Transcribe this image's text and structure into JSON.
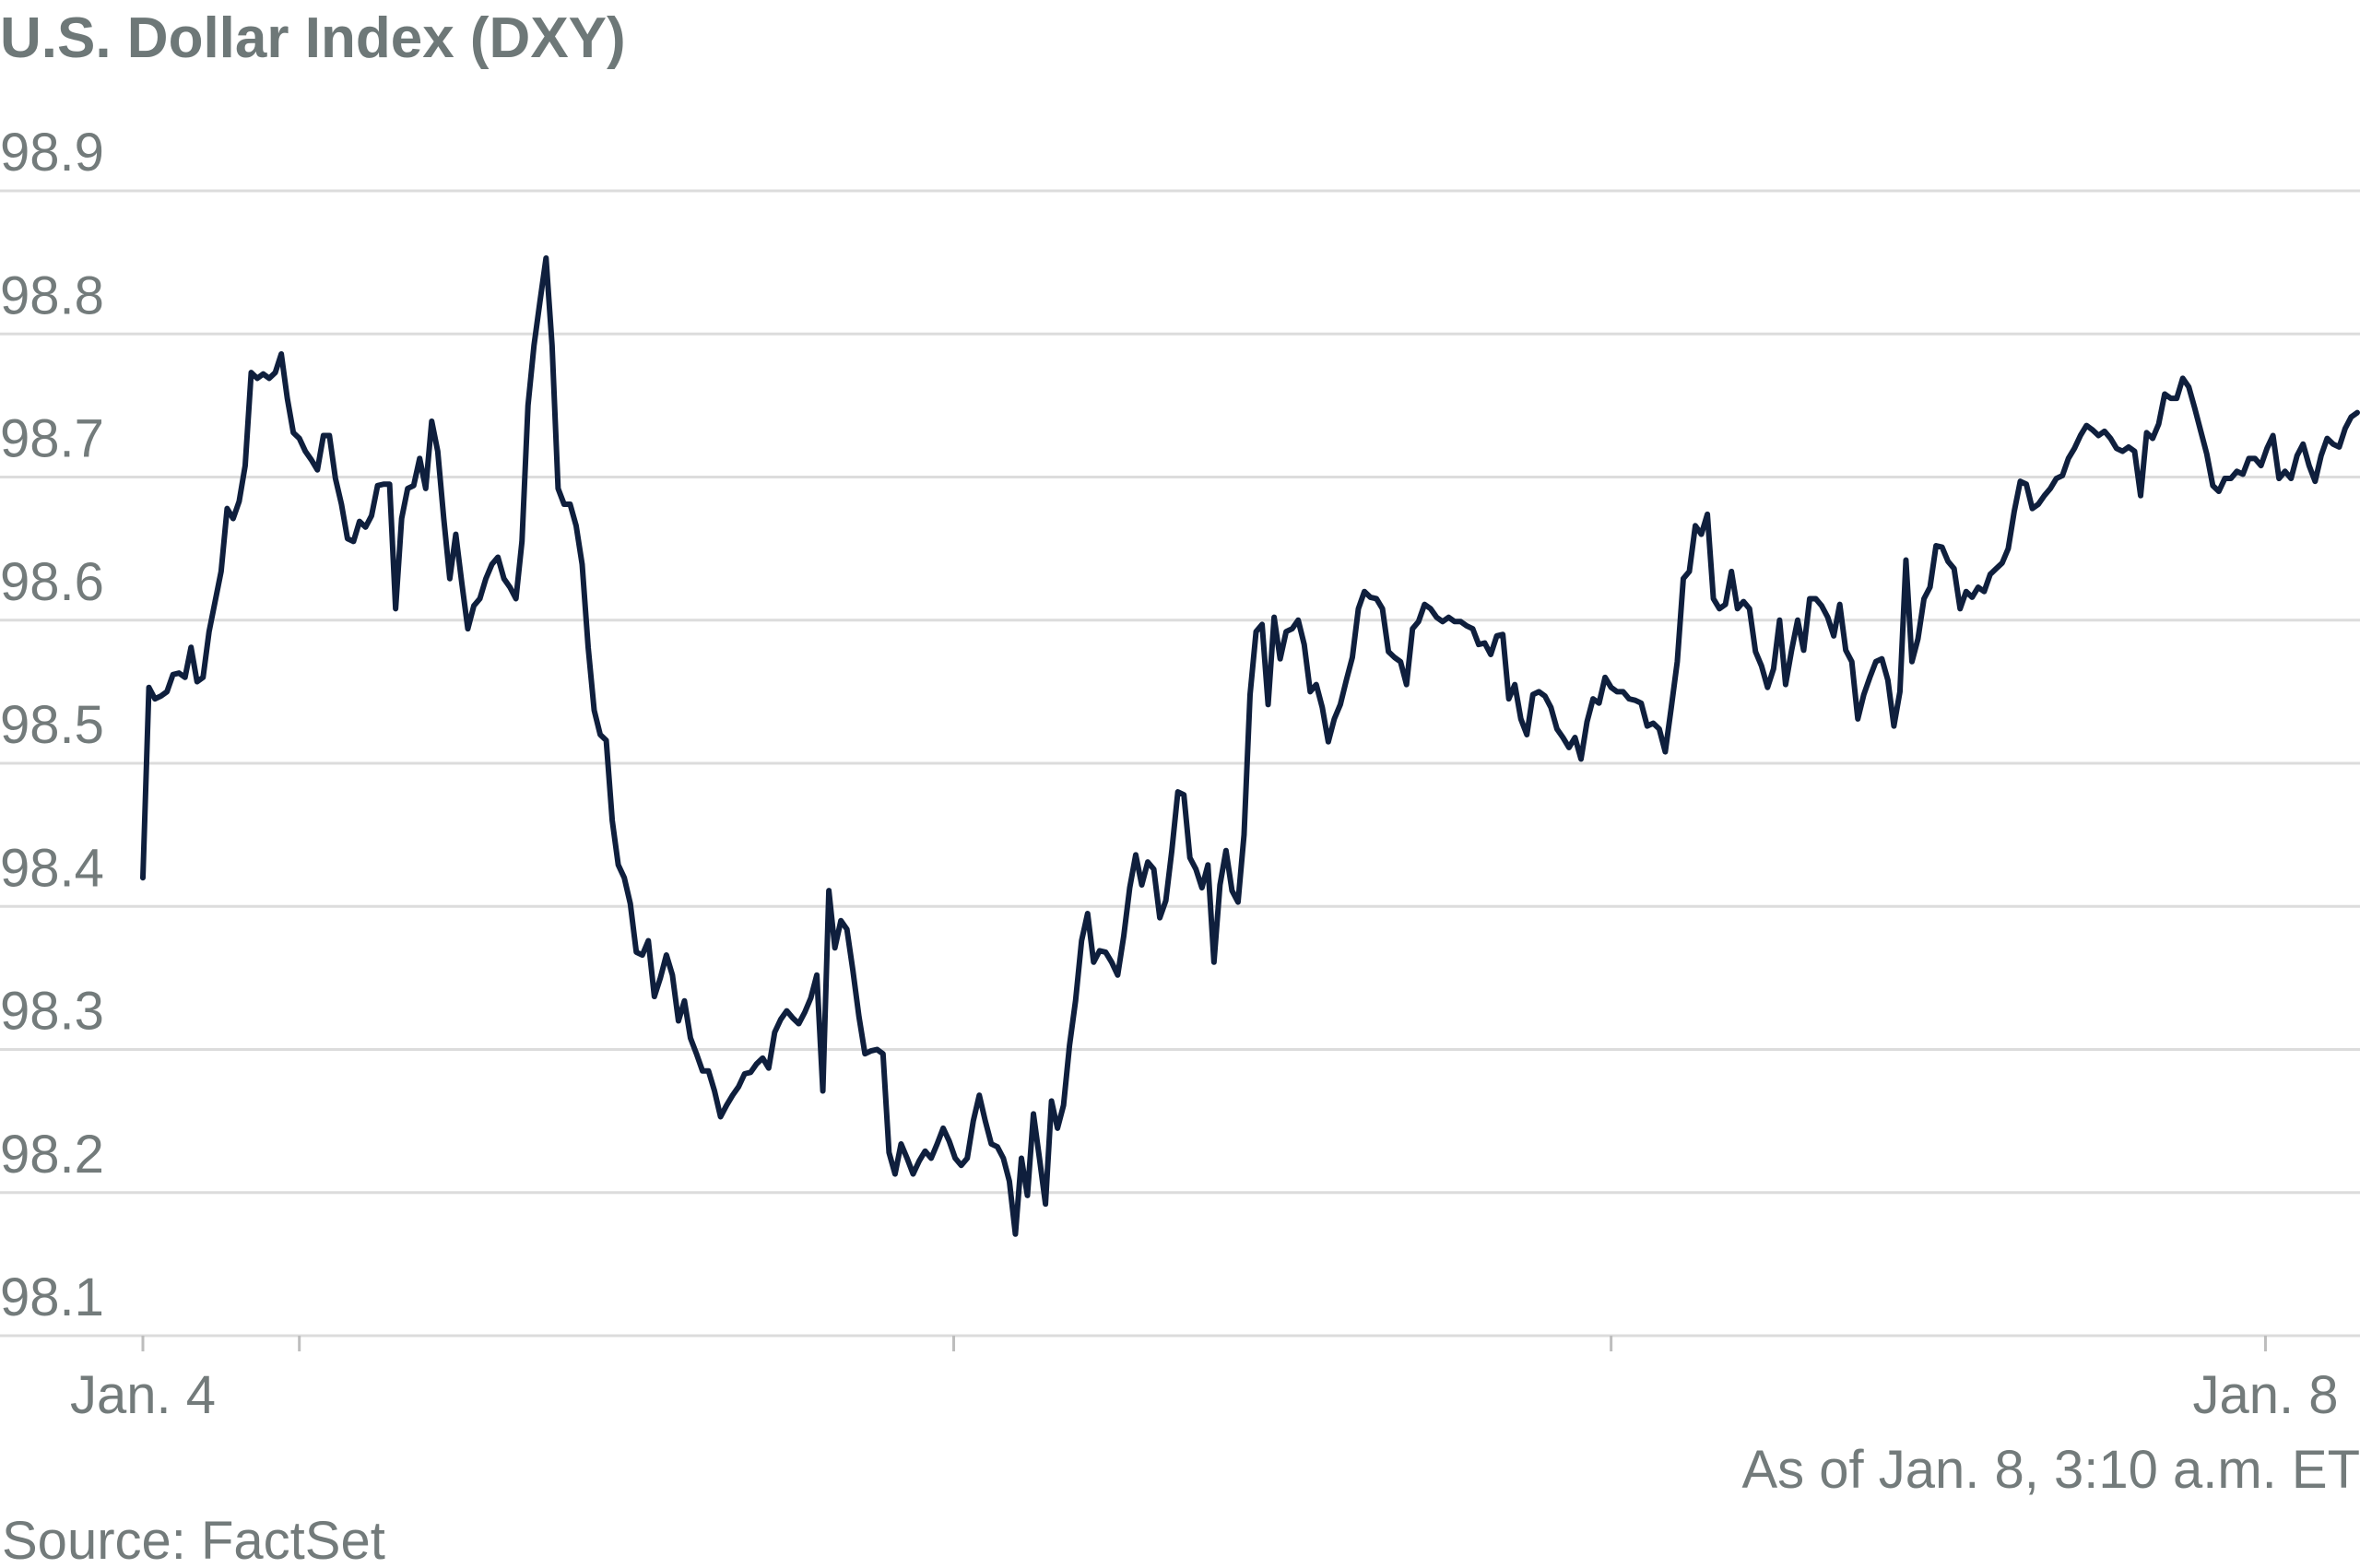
{
  "chart_data": {
    "type": "line",
    "title": "U.S. Dollar Index (DXY)",
    "annotation": "As of Jan. 8, 3:10 a.m. ET",
    "source": "Source: FactSet",
    "ylim": [
      98.1,
      98.9
    ],
    "yticks": [
      98.1,
      98.2,
      98.3,
      98.4,
      98.5,
      98.6,
      98.7,
      98.8,
      98.9
    ],
    "grid": true,
    "xlim": [
      0,
      368
    ],
    "xticks": [
      {
        "value": 0,
        "label": "Jan. 4"
      },
      {
        "value": 26,
        "label": null
      },
      {
        "value": 134.75,
        "label": null
      },
      {
        "value": 244,
        "label": null
      },
      {
        "value": 352.75,
        "label": "Jan. 8"
      }
    ],
    "series": [
      {
        "name": "DXY",
        "color": "#0f1f3d",
        "values": [
          98.42,
          98.553,
          98.545,
          98.547,
          98.55,
          98.562,
          98.563,
          98.56,
          98.581,
          98.557,
          98.56,
          98.592,
          98.613,
          98.634,
          98.678,
          98.671,
          98.683,
          98.708,
          98.773,
          98.769,
          98.772,
          98.769,
          98.773,
          98.786,
          98.755,
          98.731,
          98.727,
          98.718,
          98.712,
          98.705,
          98.729,
          98.729,
          98.699,
          98.681,
          98.657,
          98.655,
          98.669,
          98.665,
          98.673,
          98.694,
          98.695,
          98.695,
          98.608,
          98.671,
          98.692,
          98.694,
          98.713,
          98.692,
          98.739,
          98.718,
          98.671,
          98.629,
          98.66,
          98.626,
          98.594,
          98.61,
          98.615,
          98.629,
          98.639,
          98.644,
          98.629,
          98.623,
          98.615,
          98.655,
          98.75,
          98.792,
          98.823,
          98.853,
          98.792,
          98.692,
          98.681,
          98.681,
          98.666,
          98.639,
          98.581,
          98.537,
          98.52,
          98.516,
          98.46,
          98.429,
          98.42,
          98.402,
          98.368,
          98.366,
          98.376,
          98.337,
          98.35,
          98.366,
          98.352,
          98.32,
          98.334,
          98.308,
          98.297,
          98.285,
          98.285,
          98.271,
          98.253,
          98.261,
          98.268,
          98.274,
          98.283,
          98.284,
          98.29,
          98.294,
          98.287,
          98.312,
          98.321,
          98.327,
          98.322,
          98.318,
          98.326,
          98.336,
          98.352,
          98.271,
          98.411,
          98.371,
          98.39,
          98.384,
          98.355,
          98.323,
          98.297,
          98.299,
          98.3,
          98.297,
          98.228,
          98.213,
          98.234,
          98.224,
          98.213,
          98.222,
          98.229,
          98.224,
          98.234,
          98.245,
          98.236,
          98.224,
          98.219,
          98.224,
          98.25,
          98.268,
          98.25,
          98.234,
          98.232,
          98.224,
          98.208,
          98.171,
          98.224,
          98.198,
          98.255,
          98.224,
          98.192,
          98.264,
          98.245,
          98.261,
          98.303,
          98.334,
          98.376,
          98.395,
          98.361,
          98.369,
          98.368,
          98.361,
          98.352,
          98.379,
          98.413,
          98.436,
          98.415,
          98.431,
          98.426,
          98.392,
          98.404,
          98.439,
          98.48,
          98.478,
          98.434,
          98.426,
          98.413,
          98.429,
          98.361,
          98.415,
          98.439,
          98.411,
          98.403,
          98.45,
          98.548,
          98.592,
          98.597,
          98.541,
          98.602,
          98.573,
          98.592,
          98.594,
          98.6,
          98.583,
          98.55,
          98.555,
          98.539,
          98.515,
          98.531,
          98.541,
          98.558,
          98.574,
          98.608,
          98.62,
          98.616,
          98.615,
          98.608,
          98.578,
          98.574,
          98.571,
          98.555,
          98.594,
          98.599,
          98.611,
          98.608,
          98.602,
          98.599,
          98.602,
          98.599,
          98.599,
          98.596,
          98.594,
          98.583,
          98.584,
          98.576,
          98.589,
          98.59,
          98.545,
          98.555,
          98.531,
          98.52,
          98.548,
          98.55,
          98.547,
          98.539,
          98.524,
          98.518,
          98.511,
          98.518,
          98.503,
          98.529,
          98.545,
          98.542,
          98.56,
          98.553,
          98.55,
          98.55,
          98.545,
          98.544,
          98.542,
          98.526,
          98.528,
          98.524,
          98.508,
          98.539,
          98.571,
          98.629,
          98.634,
          98.666,
          98.66,
          98.674,
          98.615,
          98.608,
          98.611,
          98.634,
          98.608,
          98.613,
          98.608,
          98.578,
          98.568,
          98.553,
          98.566,
          98.6,
          98.555,
          98.579,
          98.6,
          98.579,
          98.615,
          98.615,
          98.61,
          98.602,
          98.589,
          98.611,
          98.579,
          98.571,
          98.531,
          98.548,
          98.56,
          98.571,
          98.573,
          98.558,
          98.526,
          98.55,
          98.642,
          98.571,
          98.587,
          98.615,
          98.623,
          98.652,
          98.651,
          98.641,
          98.636,
          98.608,
          98.62,
          98.616,
          98.623,
          98.62,
          98.632,
          98.636,
          98.64,
          98.65,
          98.676,
          98.697,
          98.695,
          98.678,
          98.681,
          98.687,
          98.692,
          98.699,
          98.701,
          98.713,
          98.72,
          98.729,
          98.736,
          98.733,
          98.729,
          98.732,
          98.727,
          98.72,
          98.718,
          98.721,
          98.718,
          98.687,
          98.731,
          98.727,
          98.737,
          98.758,
          98.755,
          98.755,
          98.769,
          98.763,
          98.748,
          98.732,
          98.716,
          98.694,
          98.69,
          98.699,
          98.699,
          98.704,
          98.702,
          98.713,
          98.713,
          98.708,
          98.72,
          98.729,
          98.699,
          98.704,
          98.699,
          98.715,
          98.723,
          98.708,
          98.697,
          98.715,
          98.727,
          98.723,
          98.721,
          98.734,
          98.742,
          98.745
        ]
      }
    ]
  }
}
